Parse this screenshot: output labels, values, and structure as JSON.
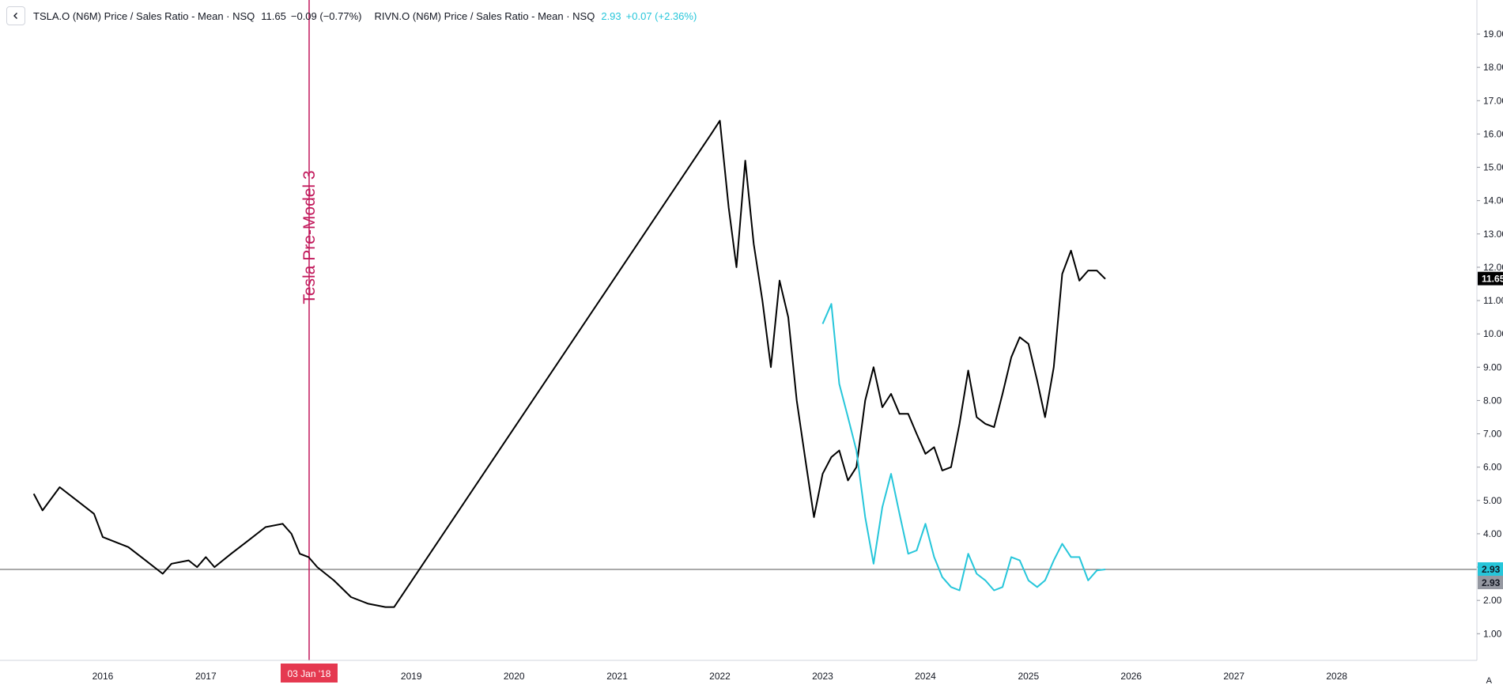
{
  "legend": {
    "series1": {
      "name": "TSLA.O (N6M) Price / Sales Ratio - Mean · NSQ",
      "value": "11.65",
      "change": "−0.09 (−0.77%)"
    },
    "series2": {
      "name": "RIVN.O (N6M) Price / Sales Ratio - Mean · NSQ",
      "value": "2.93",
      "change": "+0.07 (+2.36%)"
    }
  },
  "colors": {
    "tsla": "#000000",
    "rivn": "#26c6da",
    "event": "#c2185b",
    "date_tag_bg": "#e53950",
    "axis_text": "#131722"
  },
  "icons": {
    "back": "chevron-left-icon",
    "scale": "auto-scale-icon"
  },
  "scale_button": "A",
  "chart_data": {
    "type": "line",
    "x_axis": {
      "labels": [
        "2016",
        "2017",
        "2019",
        "2020",
        "2021",
        "2022",
        "2023",
        "2024",
        "2025",
        "2026",
        "2027",
        "2028"
      ],
      "range": [
        "2015-01",
        "2028-12"
      ]
    },
    "y_axis": {
      "labels": [
        "1.00",
        "2.00",
        "3.00",
        "4.00",
        "5.00",
        "6.00",
        "7.00",
        "8.00",
        "9.00",
        "10.00",
        "11.00",
        "12.00",
        "13.00",
        "14.00",
        "15.00",
        "16.00",
        "17.00",
        "18.00",
        "19.00"
      ],
      "range": [
        0.2,
        19.5
      ],
      "position": "right"
    },
    "series": [
      {
        "name": "TSLA.O (N6M) Price / Sales Ratio - Mean",
        "color": "#000000",
        "last": "11.65",
        "points": [
          [
            "2015-05",
            5.2
          ],
          [
            "2015-06",
            4.7
          ],
          [
            "2015-08",
            5.4
          ],
          [
            "2015-10",
            5.0
          ],
          [
            "2015-12",
            4.6
          ],
          [
            "2016-01",
            3.9
          ],
          [
            "2016-04",
            3.6
          ],
          [
            "2016-06",
            3.2
          ],
          [
            "2016-08",
            2.8
          ],
          [
            "2016-09",
            3.1
          ],
          [
            "2016-11",
            3.2
          ],
          [
            "2016-12",
            3.0
          ],
          [
            "2017-01",
            3.3
          ],
          [
            "2017-02",
            3.0
          ],
          [
            "2017-04",
            3.4
          ],
          [
            "2017-06",
            3.8
          ],
          [
            "2017-08",
            4.2
          ],
          [
            "2017-10",
            4.3
          ],
          [
            "2017-11",
            4.0
          ],
          [
            "2017-12",
            3.4
          ],
          [
            "2018-01",
            3.3
          ],
          [
            "2018-02",
            3.0
          ],
          [
            "2018-04",
            2.6
          ],
          [
            "2018-06",
            2.1
          ],
          [
            "2018-08",
            1.9
          ],
          [
            "2018-10",
            1.8
          ],
          [
            "2018-11",
            1.8
          ],
          [
            "2021-12",
            16.0
          ],
          [
            "2022-01",
            16.4
          ],
          [
            "2022-02",
            13.8
          ],
          [
            "2022-03",
            12.0
          ],
          [
            "2022-04",
            15.2
          ],
          [
            "2022-05",
            12.7
          ],
          [
            "2022-06",
            11.0
          ],
          [
            "2022-07",
            9.0
          ],
          [
            "2022-08",
            11.6
          ],
          [
            "2022-09",
            10.5
          ],
          [
            "2022-10",
            8.0
          ],
          [
            "2022-11",
            6.2
          ],
          [
            "2022-12",
            4.5
          ],
          [
            "2023-01",
            5.8
          ],
          [
            "2023-02",
            6.3
          ],
          [
            "2023-03",
            6.5
          ],
          [
            "2023-04",
            5.6
          ],
          [
            "2023-05",
            6.0
          ],
          [
            "2023-06",
            8.0
          ],
          [
            "2023-07",
            9.0
          ],
          [
            "2023-08",
            7.8
          ],
          [
            "2023-09",
            8.2
          ],
          [
            "2023-10",
            7.6
          ],
          [
            "2023-11",
            7.6
          ],
          [
            "2023-12",
            7.0
          ],
          [
            "2024-01",
            6.4
          ],
          [
            "2024-02",
            6.6
          ],
          [
            "2024-03",
            5.9
          ],
          [
            "2024-04",
            6.0
          ],
          [
            "2024-05",
            7.3
          ],
          [
            "2024-06",
            8.9
          ],
          [
            "2024-07",
            7.5
          ],
          [
            "2024-08",
            7.3
          ],
          [
            "2024-09",
            7.2
          ],
          [
            "2024-10",
            8.2
          ],
          [
            "2024-11",
            9.3
          ],
          [
            "2024-12",
            9.9
          ],
          [
            "2025-01",
            9.7
          ],
          [
            "2025-02",
            8.6
          ],
          [
            "2025-03",
            7.5
          ],
          [
            "2025-04",
            9.0
          ],
          [
            "2025-05",
            11.8
          ],
          [
            "2025-06",
            12.5
          ],
          [
            "2025-07",
            11.6
          ],
          [
            "2025-08",
            11.9
          ],
          [
            "2025-09",
            11.9
          ],
          [
            "2025-10",
            11.65
          ]
        ]
      },
      {
        "name": "RIVN.O (N6M) Price / Sales Ratio - Mean",
        "color": "#26c6da",
        "last": "2.93",
        "points": [
          [
            "2023-01",
            10.3
          ],
          [
            "2023-02",
            10.9
          ],
          [
            "2023-03",
            8.5
          ],
          [
            "2023-04",
            7.5
          ],
          [
            "2023-05",
            6.5
          ],
          [
            "2023-06",
            4.5
          ],
          [
            "2023-07",
            3.1
          ],
          [
            "2023-08",
            4.8
          ],
          [
            "2023-09",
            5.8
          ],
          [
            "2023-10",
            4.6
          ],
          [
            "2023-11",
            3.4
          ],
          [
            "2023-12",
            3.5
          ],
          [
            "2024-01",
            4.3
          ],
          [
            "2024-02",
            3.3
          ],
          [
            "2024-03",
            2.7
          ],
          [
            "2024-04",
            2.4
          ],
          [
            "2024-05",
            2.3
          ],
          [
            "2024-06",
            3.4
          ],
          [
            "2024-07",
            2.8
          ],
          [
            "2024-08",
            2.6
          ],
          [
            "2024-09",
            2.3
          ],
          [
            "2024-10",
            2.4
          ],
          [
            "2024-11",
            3.3
          ],
          [
            "2024-12",
            3.2
          ],
          [
            "2025-01",
            2.6
          ],
          [
            "2025-02",
            2.4
          ],
          [
            "2025-03",
            2.6
          ],
          [
            "2025-04",
            3.2
          ],
          [
            "2025-05",
            3.7
          ],
          [
            "2025-06",
            3.3
          ],
          [
            "2025-07",
            3.3
          ],
          [
            "2025-08",
            2.6
          ],
          [
            "2025-09",
            2.9
          ],
          [
            "2025-10",
            2.93
          ]
        ]
      }
    ],
    "horizontal_line": {
      "value": 2.93
    },
    "event": {
      "date": "2018-01-03",
      "label": "Tesla Pre-Model 3",
      "date_tag": "03 Jan '18"
    },
    "grid": false
  }
}
